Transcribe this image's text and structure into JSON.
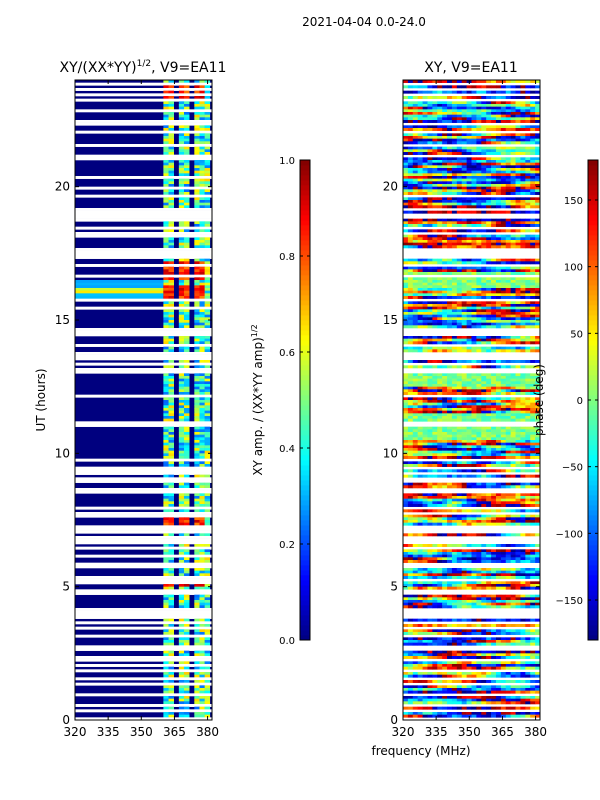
{
  "figure": {
    "suptitle": "2021-04-04 0.0-24.0",
    "shared_xlabel": "frequency (MHz)"
  },
  "colors": {
    "jet": [
      "#00007f",
      "#0000ff",
      "#007fff",
      "#00ffff",
      "#7fff7f",
      "#ffff00",
      "#ff7f00",
      "#ff0000",
      "#7f0000"
    ],
    "flag_dark": "#00007f",
    "flag_white": "#ffffff"
  },
  "chart_data": [
    {
      "type": "heatmap",
      "title_main": "XY/(XX*YY)",
      "title_exp": "1/2",
      "title_suffix": ", V9=EA11",
      "xlabel": "",
      "ylabel": "UT (hours)",
      "xlim": [
        320,
        382
      ],
      "ylim": [
        0,
        24
      ],
      "xticks": [
        "320",
        "335",
        "350",
        "365",
        "380"
      ],
      "xtick_values": [
        320,
        335,
        350,
        365,
        380
      ],
      "yticks": [
        "0",
        "5",
        "10",
        "15",
        "20"
      ],
      "ytick_values": [
        0,
        5,
        10,
        15,
        20
      ],
      "colorbar": {
        "label_main": "XY amp. / (XX*YY amp)",
        "label_exp": "1/2",
        "range": [
          0,
          1
        ],
        "ticks": [
          "0.0",
          "0.2",
          "0.4",
          "0.6",
          "0.8",
          "1.0"
        ],
        "tick_values": [
          0,
          0.2,
          0.4,
          0.6,
          0.8,
          1.0
        ]
      },
      "valid_band_mhz": [
        360,
        381
      ],
      "typical_amplitude": 0.45,
      "high_amplitude_hours": [
        [
          15.8,
          16.3
        ],
        [
          16.5,
          17.2
        ],
        [
          23.2,
          23.8
        ],
        [
          5.0,
          5.4
        ],
        [
          7.2,
          7.6
        ]
      ],
      "high_amplitude_value": 0.85
    },
    {
      "type": "heatmap",
      "title_main": "XY, V9=EA11",
      "xlabel": "",
      "ylabel": "",
      "xlim": [
        320,
        382
      ],
      "ylim": [
        0,
        24
      ],
      "xticks": [
        "320",
        "335",
        "350",
        "365",
        "380"
      ],
      "xtick_values": [
        320,
        335,
        350,
        365,
        380
      ],
      "yticks": [
        "0",
        "5",
        "10",
        "15",
        "20"
      ],
      "ytick_values": [
        0,
        5,
        10,
        15,
        20
      ],
      "colorbar": {
        "label_main": "phase (deg)",
        "range": [
          -180,
          180
        ],
        "ticks": [
          "−150",
          "−100",
          "−50",
          "0",
          "50",
          "100",
          "150"
        ],
        "tick_values": [
          -150,
          -100,
          -50,
          0,
          50,
          100,
          150
        ]
      },
      "phase_range_deg": [
        -180,
        180
      ],
      "coherent_hours": [
        [
          10.5,
          11.5
        ],
        [
          12.5,
          13.2
        ],
        [
          16.2,
          16.8
        ]
      ]
    }
  ]
}
